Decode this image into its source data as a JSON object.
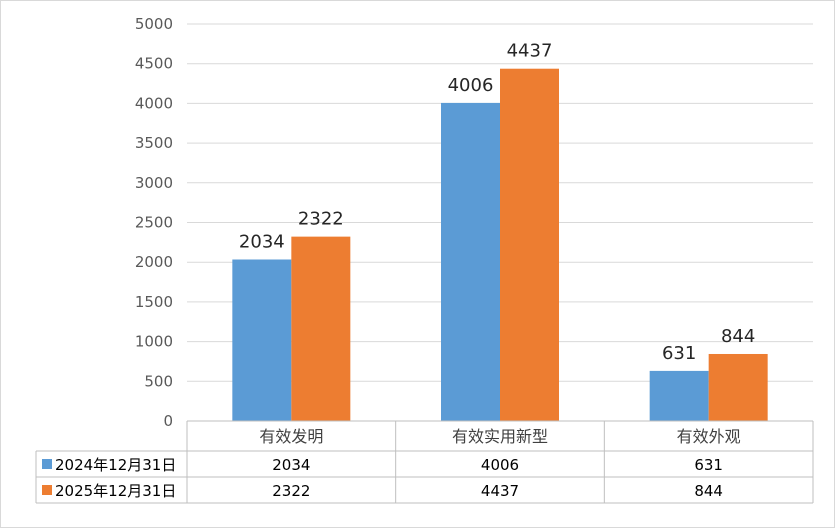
{
  "chart_data": {
    "type": "bar",
    "categories": [
      "有效发明",
      "有效实用新型",
      "有效外观"
    ],
    "series": [
      {
        "name": "2024年12月31日",
        "values": [
          2034,
          4006,
          631
        ],
        "color": "#5B9BD5"
      },
      {
        "name": "2025年12月31日",
        "values": [
          2322,
          4437,
          844
        ],
        "color": "#ED7D31"
      }
    ],
    "ylim": [
      0,
      5000
    ],
    "yticks": [
      0,
      500,
      1000,
      1500,
      2000,
      2500,
      3000,
      3500,
      4000,
      4500,
      5000
    ],
    "grid": true,
    "legend": "data-table",
    "data_table": true,
    "data_labels": true,
    "title": "",
    "xlabel": "",
    "ylabel": ""
  }
}
